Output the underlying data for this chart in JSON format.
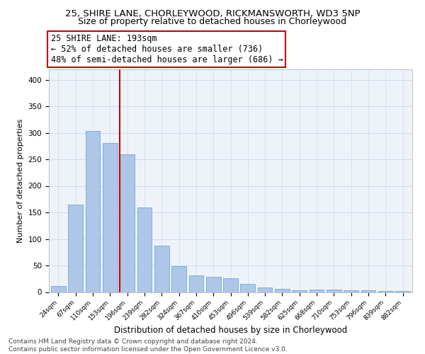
{
  "title": "25, SHIRE LANE, CHORLEYWOOD, RICKMANSWORTH, WD3 5NP",
  "subtitle": "Size of property relative to detached houses in Chorleywood",
  "xlabel": "Distribution of detached houses by size in Chorleywood",
  "ylabel": "Number of detached properties",
  "categories": [
    "24sqm",
    "67sqm",
    "110sqm",
    "153sqm",
    "196sqm",
    "239sqm",
    "282sqm",
    "324sqm",
    "367sqm",
    "410sqm",
    "453sqm",
    "496sqm",
    "539sqm",
    "582sqm",
    "625sqm",
    "668sqm",
    "710sqm",
    "753sqm",
    "796sqm",
    "839sqm",
    "882sqm"
  ],
  "values": [
    11,
    165,
    303,
    281,
    259,
    160,
    88,
    49,
    32,
    29,
    26,
    15,
    9,
    6,
    4,
    5,
    5,
    4,
    3,
    2,
    2
  ],
  "bar_color": "#aec6e8",
  "bar_edge_color": "#5a9fd4",
  "vline_color": "#cc0000",
  "annotation_line1": "25 SHIRE LANE: 193sqm",
  "annotation_line2": "← 52% of detached houses are smaller (736)",
  "annotation_line3": "48% of semi-detached houses are larger (686) →",
  "annotation_box_color": "#ffffff",
  "annotation_box_edge": "#cc0000",
  "ylim": [
    0,
    420
  ],
  "yticks": [
    0,
    50,
    100,
    150,
    200,
    250,
    300,
    350,
    400
  ],
  "grid_color": "#d0dceb",
  "background_color": "#eef3fa",
  "footer": "Contains HM Land Registry data © Crown copyright and database right 2024.\nContains public sector information licensed under the Open Government Licence v3.0.",
  "title_fontsize": 9.5,
  "subtitle_fontsize": 9,
  "xlabel_fontsize": 8.5,
  "ylabel_fontsize": 8,
  "tick_fontsize": 7.5,
  "xtick_fontsize": 6.5,
  "footer_fontsize": 6.5,
  "annotation_fontsize": 8.5
}
